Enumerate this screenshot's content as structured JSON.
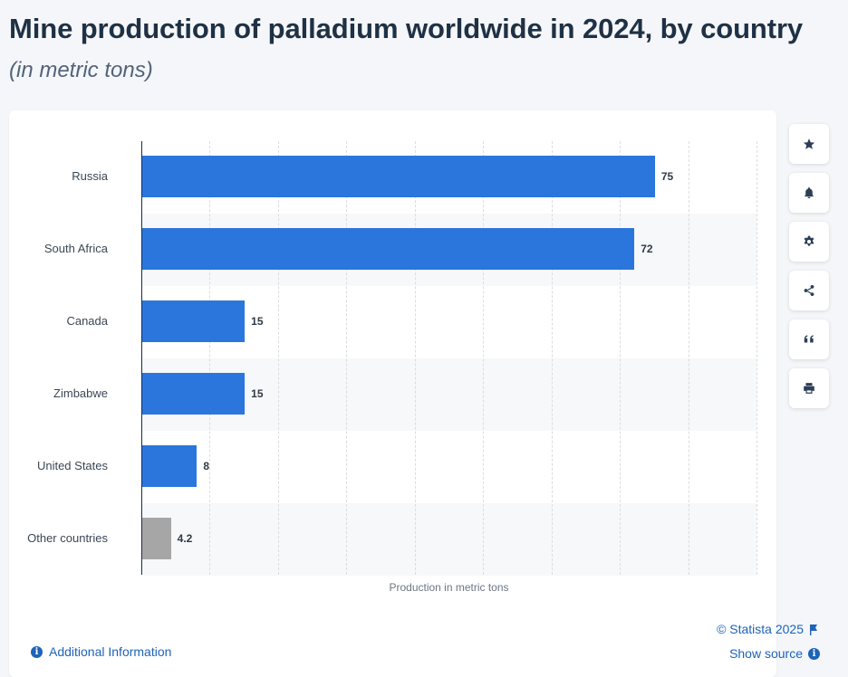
{
  "header": {
    "title": "Mine production of palladium worldwide in 2024, by country",
    "subtitle": "(in metric tons)"
  },
  "chart_data": {
    "type": "bar",
    "orientation": "horizontal",
    "categories": [
      "Russia",
      "South Africa",
      "Canada",
      "Zimbabwe",
      "United States",
      "Other countries"
    ],
    "values": [
      75,
      72,
      15,
      15,
      8,
      4.2
    ],
    "value_labels": [
      "75",
      "72",
      "15",
      "15",
      "8",
      "4.2"
    ],
    "colors": [
      "#2a76dd",
      "#2a76dd",
      "#2a76dd",
      "#2a76dd",
      "#2a76dd",
      "#a6a6a6"
    ],
    "xlabel": "Production in metric tons",
    "ylabel": "",
    "xlim": [
      0,
      90
    ],
    "grid": true,
    "legend": "none"
  },
  "footer": {
    "copyright": "© Statista 2025",
    "show_source": "Show source",
    "additional_info": "Additional Information"
  },
  "toolbar": {
    "buttons": [
      "star-icon",
      "bell-icon",
      "gear-icon",
      "share-icon",
      "quote-icon",
      "print-icon"
    ]
  },
  "colors": {
    "accent": "#1e63b8",
    "bar": "#2a76dd",
    "bar_other": "#a6a6a6",
    "band": "#f7f8f9"
  }
}
